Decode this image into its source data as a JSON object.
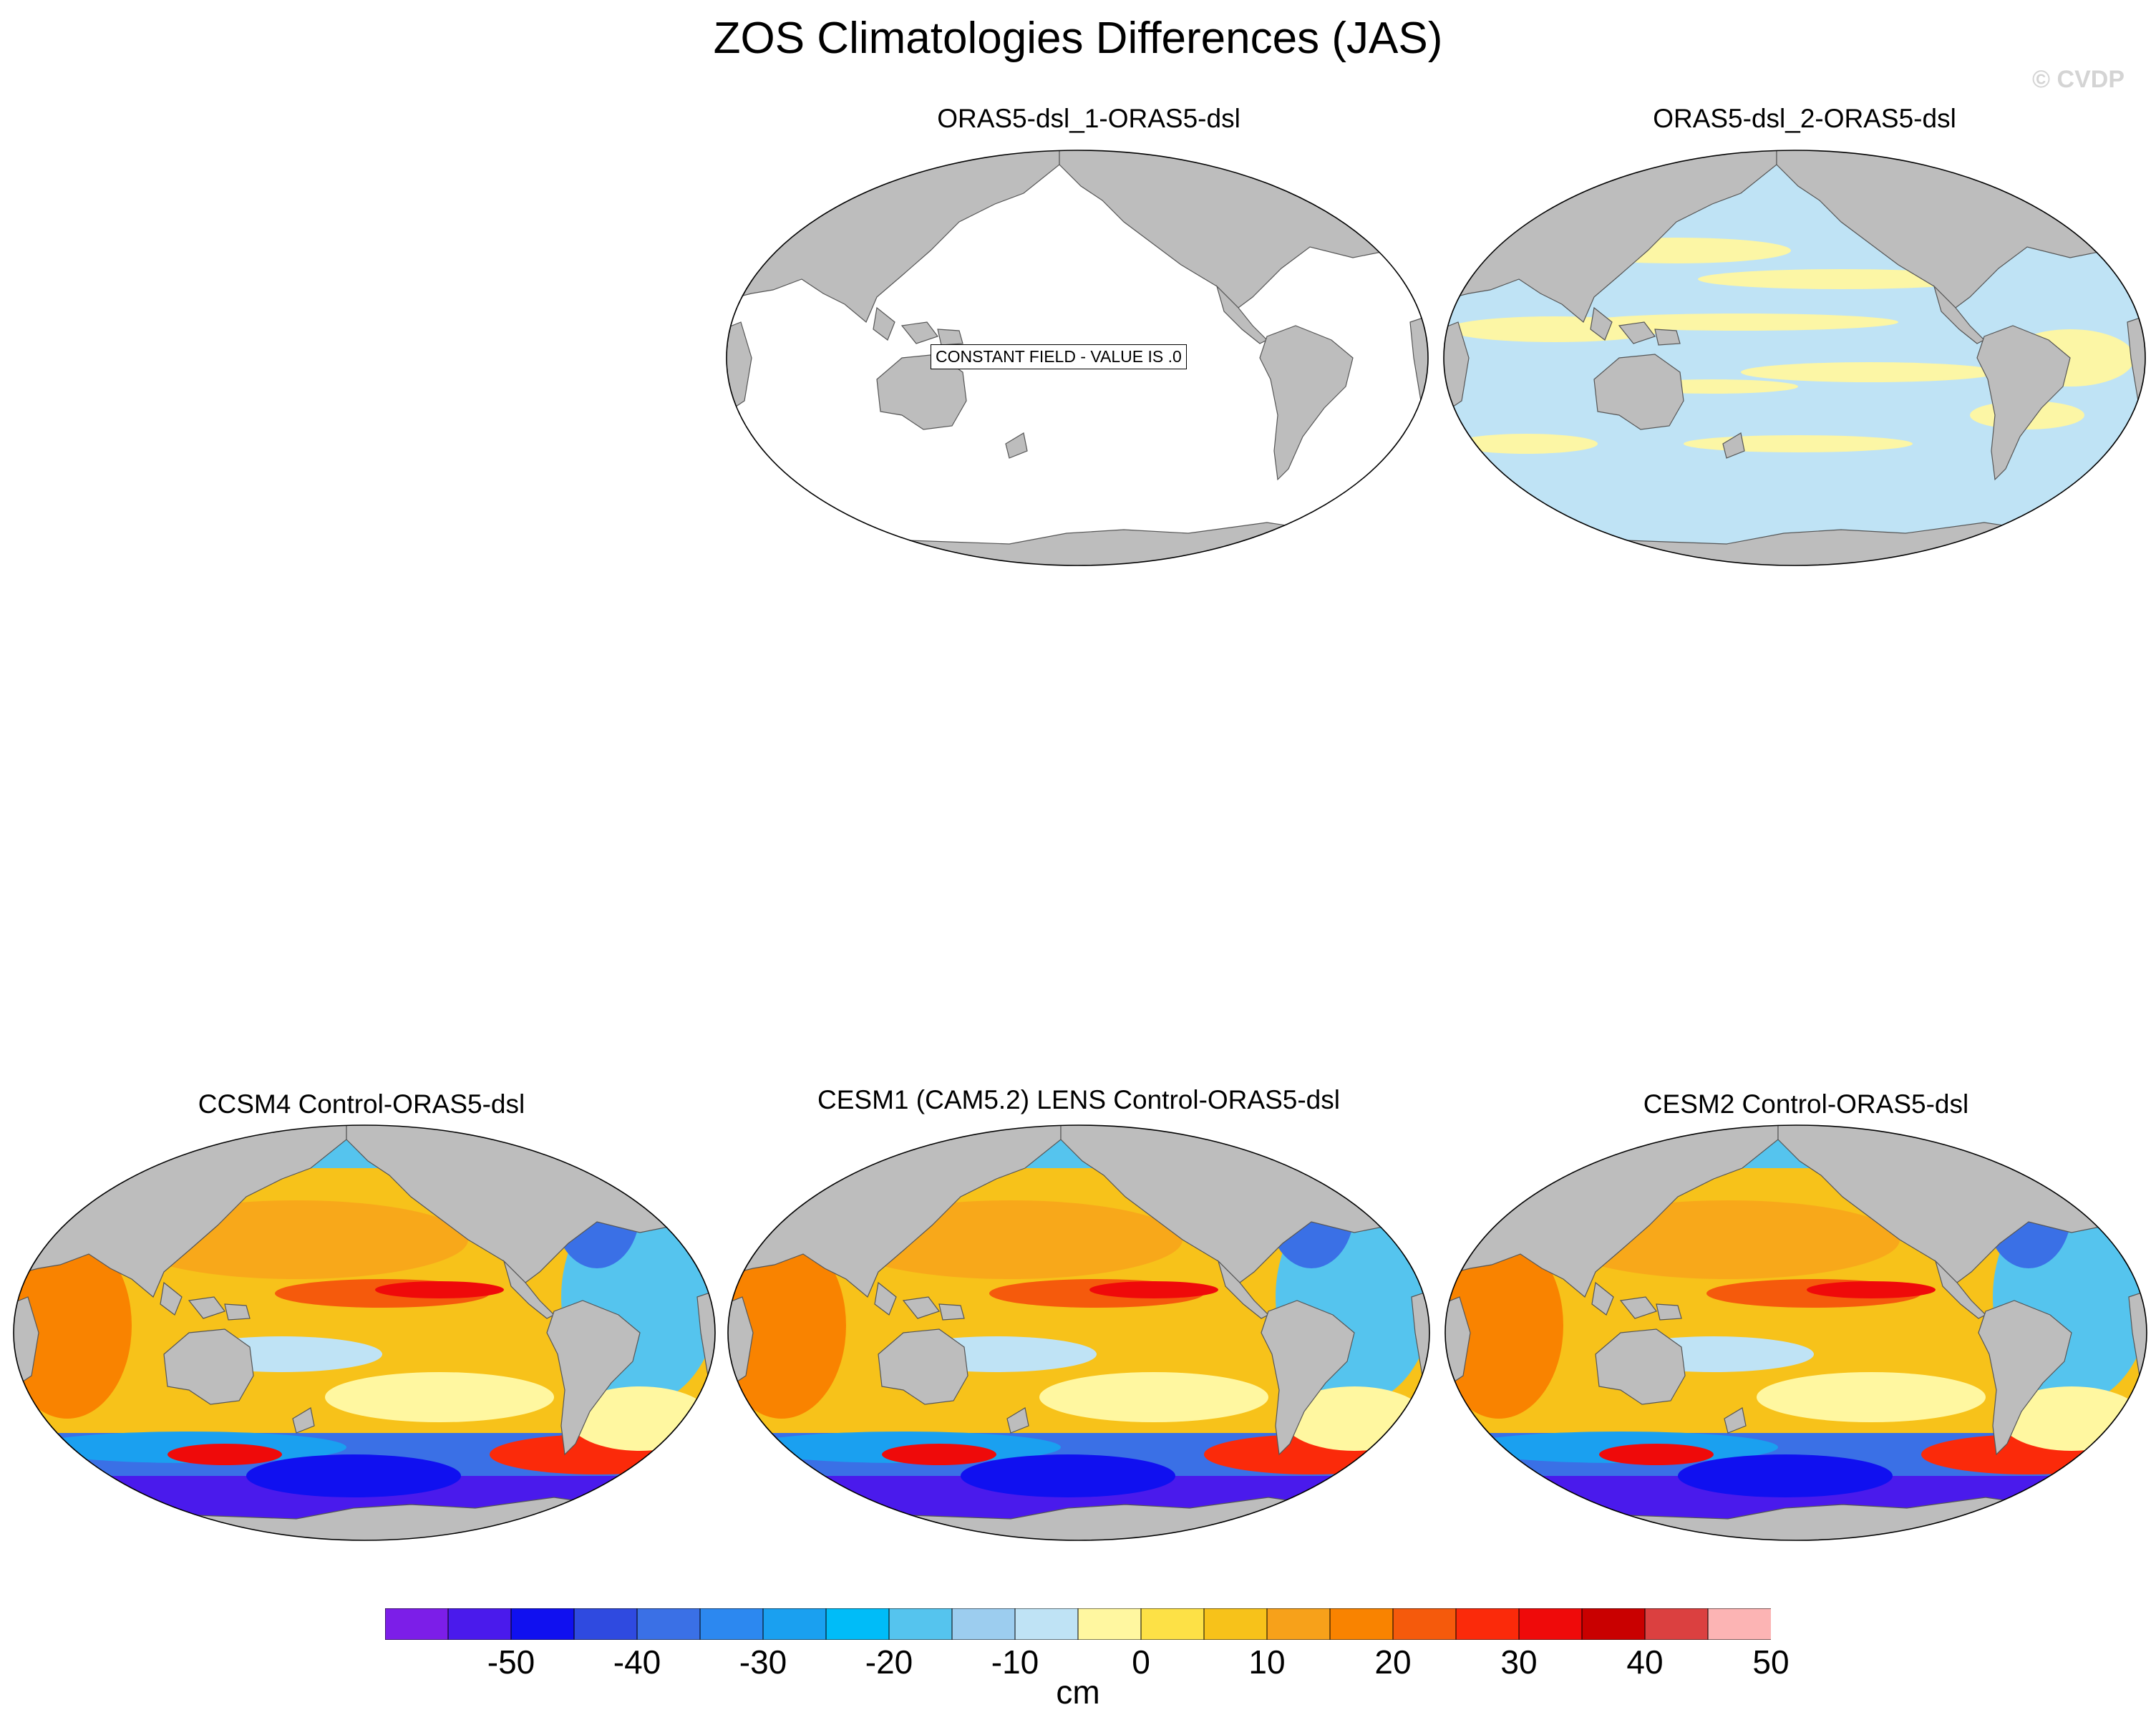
{
  "title": "ZOS Climatologies Differences (JAS)",
  "credit": "© CVDP",
  "panels": [
    {
      "title": "ORAS5-dsl_1-ORAS5-dsl",
      "pattern": "constant",
      "note": "CONSTANT FIELD - VALUE IS .0"
    },
    {
      "title": "ORAS5-dsl_2-ORAS5-dsl",
      "pattern": "small"
    },
    {
      "title": "CCSM4 Control-ORAS5-dsl",
      "pattern": "model"
    },
    {
      "title": "CESM1 (CAM5.2) LENS Control-ORAS5-dsl",
      "pattern": "model"
    },
    {
      "title": "CESM2 Control-ORAS5-dsl",
      "pattern": "model"
    }
  ],
  "colorbar": {
    "unit": "cm",
    "ticks": [
      "-50",
      "-40",
      "-30",
      "-20",
      "-10",
      "0",
      "10",
      "20",
      "30",
      "40",
      "50"
    ],
    "colors": [
      "#7c1ee8",
      "#4a1aec",
      "#1010f0",
      "#2f4ae0",
      "#3a70e6",
      "#2c88f0",
      "#1aa0f0",
      "#00bcf8",
      "#55c4ee",
      "#9ccdef",
      "#bfe3f5",
      "#fff7a0",
      "#fde146",
      "#f7c21a",
      "#f7a11a",
      "#f98300",
      "#f55a0c",
      "#fb2a0a",
      "#ef0a0a",
      "#c90000",
      "#db4040",
      "#fcb4b4"
    ],
    "color_names": [
      "land gray",
      "ocean white"
    ],
    "land": "#bdbdbd"
  }
}
